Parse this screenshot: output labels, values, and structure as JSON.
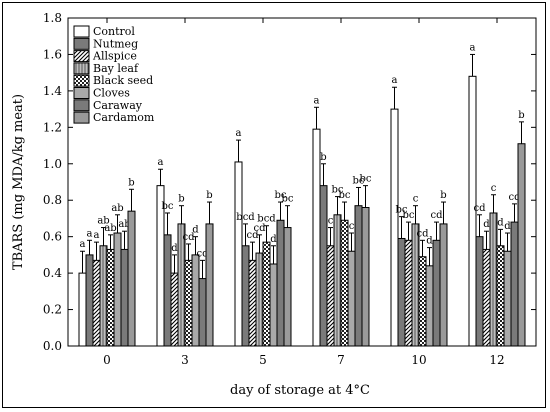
{
  "chart_data": {
    "type": "bar",
    "xlabel": "day of storage at 4°C",
    "ylabel": "TBARS (mg MDA/kg meat)",
    "ylim": [
      0.0,
      1.8
    ],
    "yticks": [
      "0.0",
      "0.2",
      "0.4",
      "0.6",
      "0.8",
      "1.0",
      "1.2",
      "1.4",
      "1.6",
      "1.8"
    ],
    "categories": [
      "0",
      "3",
      "5",
      "7",
      "10",
      "12"
    ],
    "legend_position": "top-left",
    "grid": false,
    "series": [
      {
        "name": "Control",
        "pattern": "white",
        "values": [
          0.4,
          0.88,
          1.01,
          1.19,
          1.3,
          1.48
        ],
        "errors": [
          0.12,
          0.09,
          0.12,
          0.12,
          0.12,
          0.12
        ],
        "labels": [
          "a",
          "a",
          "a",
          "a",
          "a",
          "a"
        ]
      },
      {
        "name": "Nutmeg",
        "pattern": "dark",
        "values": [
          0.5,
          0.61,
          0.55,
          0.88,
          0.59,
          0.6
        ],
        "errors": [
          0.08,
          0.12,
          0.12,
          0.12,
          0.12,
          0.12
        ],
        "labels": [
          "a",
          "bc",
          "bcd",
          "b",
          "bc",
          "cd"
        ]
      },
      {
        "name": "Allspice",
        "pattern": "diag",
        "values": [
          0.47,
          0.4,
          0.47,
          0.55,
          0.58,
          0.53
        ],
        "errors": [
          0.1,
          0.1,
          0.1,
          0.1,
          0.1,
          0.1
        ],
        "labels": [
          "a",
          "d",
          "cd",
          "c",
          "bc",
          "d"
        ]
      },
      {
        "name": "Bay leaf",
        "pattern": "vert",
        "values": [
          0.55,
          0.67,
          0.51,
          0.72,
          0.67,
          0.73
        ],
        "errors": [
          0.1,
          0.1,
          0.1,
          0.1,
          0.1,
          0.1
        ],
        "labels": [
          "ab",
          "b",
          "cd",
          "bc",
          "c",
          "c"
        ]
      },
      {
        "name": "Black seed",
        "pattern": "check",
        "values": [
          0.53,
          0.47,
          0.57,
          0.69,
          0.49,
          0.55
        ],
        "errors": [
          0.08,
          0.09,
          0.09,
          0.1,
          0.09,
          0.09
        ],
        "labels": [
          "ab",
          "cd",
          "bcd",
          "bc",
          "cd",
          "d"
        ]
      },
      {
        "name": "Cloves",
        "pattern": "light",
        "values": [
          0.62,
          0.5,
          0.45,
          0.52,
          0.44,
          0.52
        ],
        "errors": [
          0.1,
          0.1,
          0.1,
          0.1,
          0.1,
          0.1
        ],
        "labels": [
          "ab",
          "d",
          "d",
          "c",
          "d",
          "d"
        ]
      },
      {
        "name": "Caraway",
        "pattern": "dark",
        "values": [
          0.53,
          0.37,
          0.69,
          0.77,
          0.58,
          0.68
        ],
        "errors": [
          0.1,
          0.1,
          0.1,
          0.1,
          0.1,
          0.1
        ],
        "labels": [
          "ab",
          "cd",
          "bc",
          "bc",
          "cd",
          "cd"
        ]
      },
      {
        "name": "Cardamom",
        "pattern": "mid",
        "values": [
          0.74,
          0.67,
          0.65,
          0.76,
          0.67,
          1.11
        ],
        "errors": [
          0.12,
          0.12,
          0.12,
          0.12,
          0.12,
          0.12
        ],
        "labels": [
          "b",
          "b",
          "bc",
          "bc",
          "b",
          "b"
        ]
      }
    ]
  }
}
